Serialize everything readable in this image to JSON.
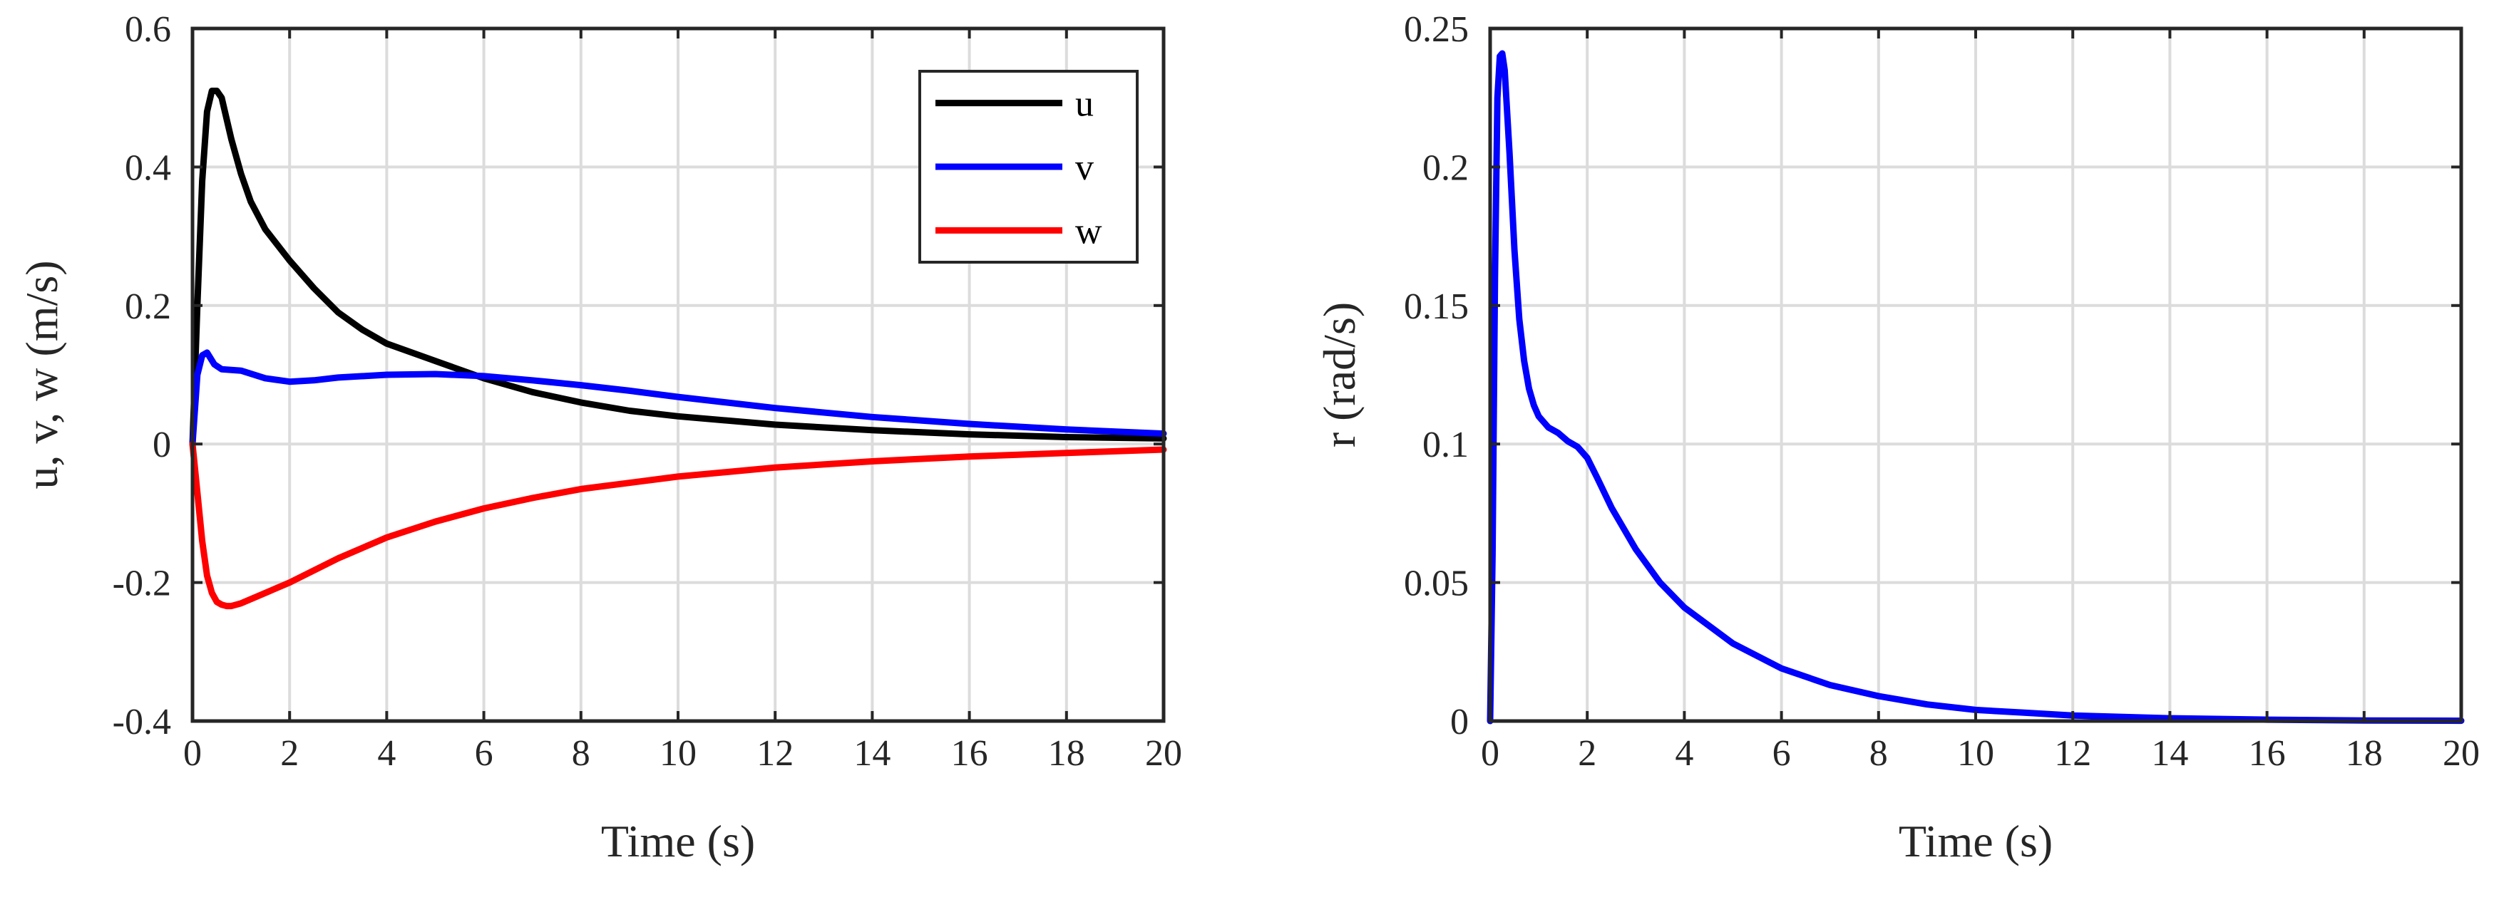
{
  "chart_data": [
    {
      "type": "line",
      "xlabel": "Time (s)",
      "ylabel": "u, v, w (m/s)",
      "xlim": [
        0,
        20
      ],
      "ylim": [
        -0.4,
        0.6
      ],
      "xticks": [
        0,
        2,
        4,
        6,
        8,
        10,
        12,
        14,
        16,
        18,
        20
      ],
      "yticks": [
        -0.4,
        -0.2,
        0,
        0.2,
        0.4,
        0.6
      ],
      "xtick_labels": [
        "0",
        "2",
        "4",
        "6",
        "8",
        "10",
        "12",
        "14",
        "16",
        "18",
        "20"
      ],
      "ytick_labels": [
        "-0.4",
        "-0.2",
        "0",
        "0.2",
        "0.4",
        "0.6"
      ],
      "grid": true,
      "legend_position": "top-right",
      "series": [
        {
          "name": "u",
          "color": "#000000",
          "x": [
            0,
            0.1,
            0.2,
            0.3,
            0.4,
            0.5,
            0.6,
            0.7,
            0.8,
            1.0,
            1.2,
            1.5,
            2,
            2.5,
            3,
            3.5,
            4,
            5,
            6,
            7,
            8,
            9,
            10,
            12,
            14,
            16,
            18,
            20
          ],
          "y": [
            0,
            0.2,
            0.38,
            0.48,
            0.51,
            0.51,
            0.5,
            0.47,
            0.44,
            0.39,
            0.35,
            0.31,
            0.265,
            0.225,
            0.19,
            0.165,
            0.145,
            0.12,
            0.095,
            0.075,
            0.06,
            0.048,
            0.04,
            0.028,
            0.02,
            0.014,
            0.01,
            0.008
          ]
        },
        {
          "name": "v",
          "color": "#0000ff",
          "x": [
            0,
            0.1,
            0.2,
            0.3,
            0.45,
            0.6,
            1.0,
            1.5,
            2.0,
            2.5,
            3,
            4,
            5,
            6,
            7,
            8,
            9,
            10,
            12,
            14,
            16,
            18,
            20
          ],
          "y": [
            0,
            0.1,
            0.128,
            0.132,
            0.115,
            0.108,
            0.106,
            0.095,
            0.09,
            0.092,
            0.096,
            0.1,
            0.101,
            0.098,
            0.092,
            0.085,
            0.077,
            0.068,
            0.052,
            0.039,
            0.029,
            0.021,
            0.015
          ]
        },
        {
          "name": "w",
          "color": "#ff0000",
          "x": [
            0,
            0.1,
            0.2,
            0.3,
            0.4,
            0.5,
            0.6,
            0.7,
            0.8,
            1.0,
            1.5,
            2,
            3,
            4,
            5,
            6,
            7,
            8,
            10,
            12,
            14,
            16,
            18,
            20
          ],
          "y": [
            0,
            -0.07,
            -0.14,
            -0.19,
            -0.215,
            -0.228,
            -0.232,
            -0.234,
            -0.234,
            -0.23,
            -0.215,
            -0.2,
            -0.165,
            -0.135,
            -0.112,
            -0.093,
            -0.078,
            -0.065,
            -0.047,
            -0.034,
            -0.025,
            -0.018,
            -0.013,
            -0.008
          ]
        }
      ]
    },
    {
      "type": "line",
      "xlabel": "Time (s)",
      "ylabel": "r (rad/s)",
      "xlim": [
        0,
        20
      ],
      "ylim": [
        0,
        0.25
      ],
      "xticks": [
        0,
        2,
        4,
        6,
        8,
        10,
        12,
        14,
        16,
        18,
        20
      ],
      "yticks": [
        0,
        0.05,
        0.1,
        0.15,
        0.2,
        0.25
      ],
      "xtick_labels": [
        "0",
        "2",
        "4",
        "6",
        "8",
        "10",
        "12",
        "14",
        "16",
        "18",
        "20"
      ],
      "ytick_labels": [
        "0",
        "0.05",
        "0.1",
        "0.15",
        "0.2",
        "0.25"
      ],
      "grid": true,
      "series": [
        {
          "color": "#0000ff",
          "x": [
            0,
            0.05,
            0.1,
            0.15,
            0.2,
            0.25,
            0.3,
            0.4,
            0.5,
            0.6,
            0.7,
            0.8,
            0.9,
            1.0,
            1.2,
            1.4,
            1.6,
            1.8,
            2.0,
            2.2,
            2.5,
            3,
            3.5,
            4,
            5,
            6,
            7,
            8,
            9,
            10,
            11,
            12,
            14,
            16,
            18,
            20
          ],
          "y": [
            0,
            0.06,
            0.16,
            0.225,
            0.24,
            0.241,
            0.235,
            0.205,
            0.17,
            0.145,
            0.13,
            0.12,
            0.114,
            0.11,
            0.106,
            0.104,
            0.101,
            0.099,
            0.095,
            0.088,
            0.077,
            0.062,
            0.05,
            0.041,
            0.028,
            0.019,
            0.013,
            0.009,
            0.006,
            0.004,
            0.003,
            0.002,
            0.001,
            0.0005,
            0.0002,
            0.0001
          ]
        }
      ]
    }
  ]
}
